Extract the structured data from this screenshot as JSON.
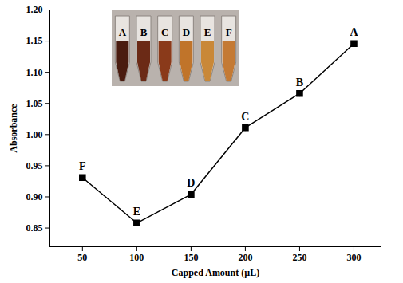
{
  "chart_data": {
    "type": "line",
    "xlabel": "Capped Amount (µL)",
    "ylabel": "Absorbance",
    "x": [
      50,
      100,
      150,
      200,
      250,
      300
    ],
    "values": [
      0.931,
      0.858,
      0.904,
      1.011,
      1.066,
      1.146
    ],
    "errors": [
      0.004,
      0.003,
      0.004,
      0.005,
      0.005,
      0.005
    ],
    "point_labels": [
      "F",
      "E",
      "D",
      "C",
      "B",
      "A"
    ],
    "inset_labels": [
      "A",
      "B",
      "C",
      "D",
      "E",
      "F"
    ],
    "color": "#000000",
    "marker": "square",
    "xlim": [
      20,
      325
    ],
    "ylim": [
      0.82,
      1.2
    ],
    "xticks": [
      50,
      100,
      150,
      200,
      250,
      300
    ],
    "yticks": [
      {
        "value": 0.85,
        "label": "0.85"
      },
      {
        "value": 0.9,
        "label": "0.90"
      },
      {
        "value": 0.95,
        "label": "0.95"
      },
      {
        "value": 1.0,
        "label": "1.00"
      },
      {
        "value": 1.05,
        "label": "1.05"
      },
      {
        "value": 1.1,
        "label": "1.10"
      },
      {
        "value": 1.15,
        "label": "1.15"
      },
      {
        "value": 1.2,
        "label": "1.20"
      }
    ]
  }
}
